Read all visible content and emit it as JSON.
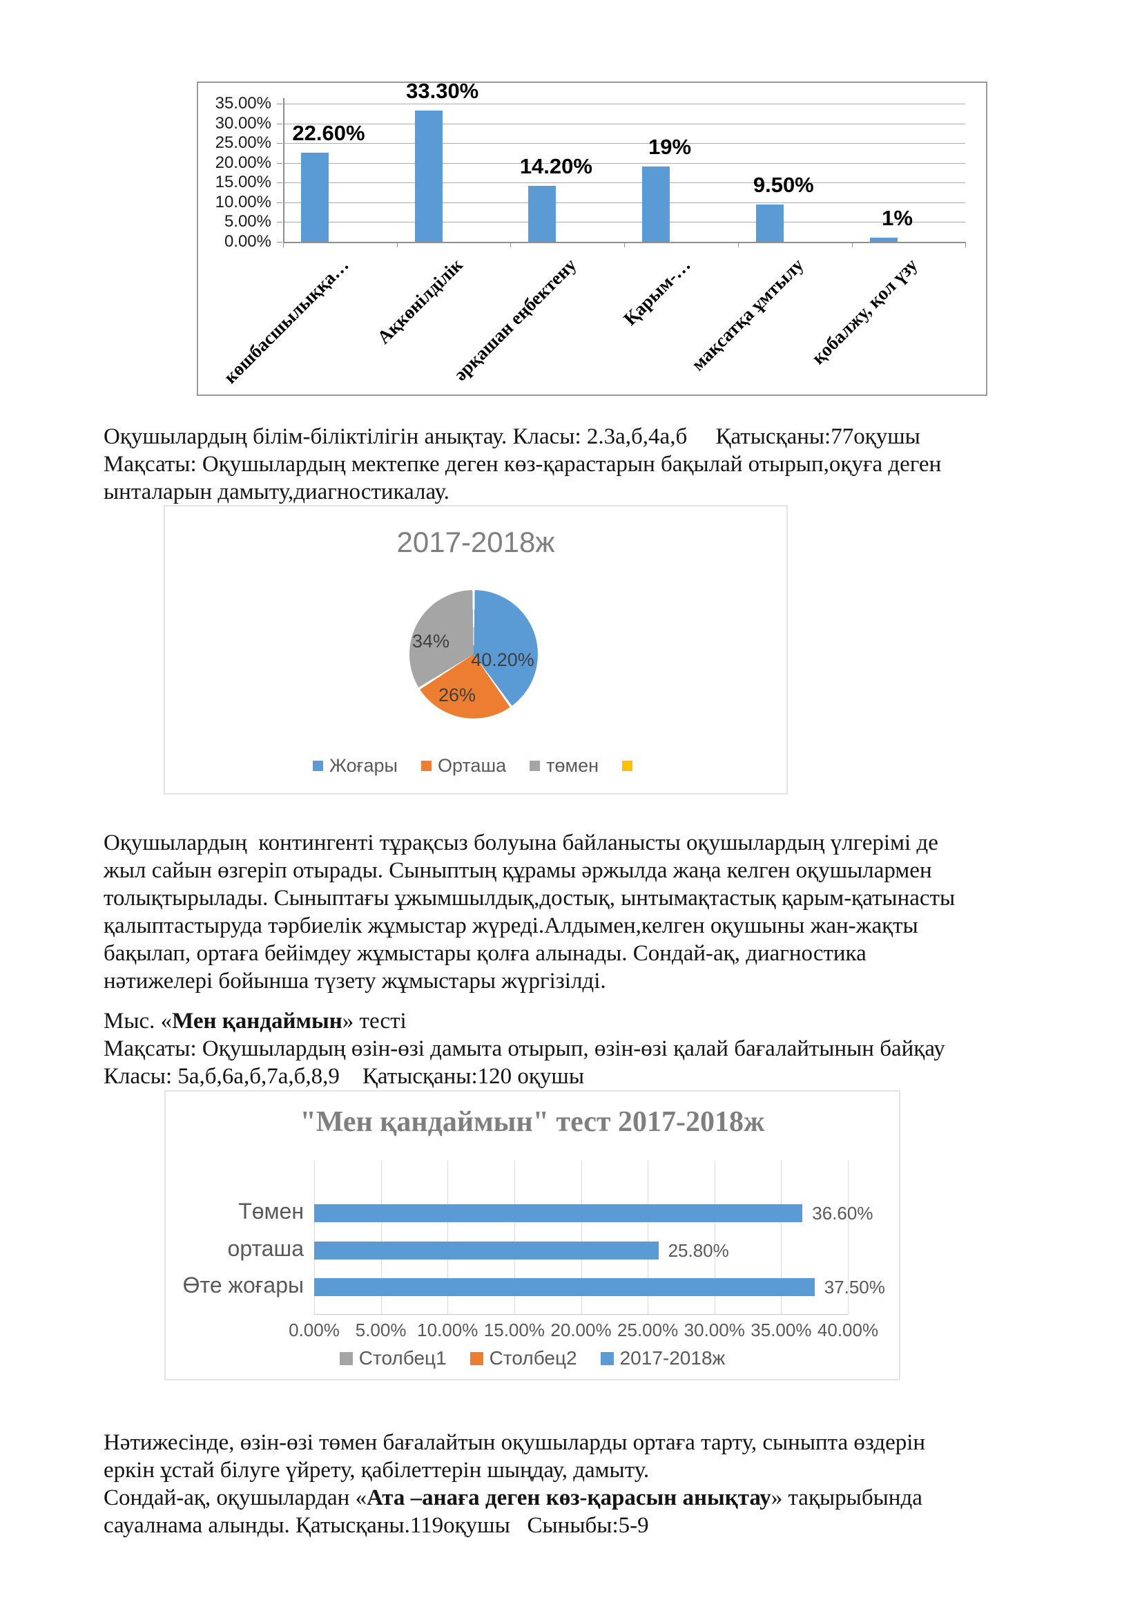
{
  "document": {
    "paragraphs": [
      {
        "name": "paragraph-1",
        "lines": [
          [
            {
              "t": "Оқушылардың білім-біліктілігін анықтау. Класы: 2.3а,б,4а,б     Қатысқаны:77оқушы"
            }
          ],
          [
            {
              "t": "Мақсаты: Оқушылардың мектепке деген көз-қарастарын бақылай отырып,оқуға деген"
            }
          ],
          [
            {
              "t": "ынталарын дамыту,диагностикалау."
            }
          ]
        ]
      },
      {
        "name": "paragraph-2",
        "lines": [
          [
            {
              "t": "Оқушылардың  контингенті тұрақсыз болуына байланысты оқушылардың үлгерімі де"
            }
          ],
          [
            {
              "t": "жыл сайын өзгеріп отырады. Сыныптың құрамы әржылда жаңа келген оқушылармен"
            }
          ],
          [
            {
              "t": "толықтырылады. Сыныптағы ұжымшылдық,достық, ынтымақтастық қарым-қатынасты"
            }
          ],
          [
            {
              "t": "қалыптастыруда тәрбиелік жұмыстар жүреді.Алдымен,келген оқушыны жан-жақты"
            }
          ],
          [
            {
              "t": "бақылап, ортаға бейімдеу жұмыстары қолға алынады. Сондай-ақ, диагностика"
            }
          ],
          [
            {
              "t": "нәтижелері бойынша түзету жұмыстары жүргізілді."
            }
          ]
        ]
      },
      {
        "name": "paragraph-3",
        "lines": [
          [
            {
              "t": "Мыс. «"
            },
            {
              "t": "Мен қандаймын",
              "b": true
            },
            {
              "t": "» тесті"
            }
          ],
          [
            {
              "t": "Мақсаты: Оқушылардың өзін-өзі дамыта отырып, өзін-өзі қалай бағалайтынын байқау"
            }
          ],
          [
            {
              "t": "Класы: 5а,б,6а,б,7а,б,8,9    Қатысқаны:120 оқушы"
            }
          ]
        ]
      },
      {
        "name": "paragraph-4",
        "lines": [
          [
            {
              "t": "Нәтижесінде, өзін-өзі төмен бағалайтын оқушыларды ортаға тарту, сыныпта өздерін"
            }
          ],
          [
            {
              "t": "еркін ұстай білуге үйрету, қабілеттерін шыңдау, дамыту."
            }
          ],
          [
            {
              "t": "Сондай-ақ, оқушылардан «"
            },
            {
              "t": "Ата –анаға деген көз-қарасын анықтау",
              "b": true
            },
            {
              "t": "» тақырыбында"
            }
          ],
          [
            {
              "t": "сауалнама алынды. Қатысқаны.119оқушы   Сыныбы:5-9"
            }
          ]
        ]
      }
    ]
  },
  "chart_data": [
    {
      "type": "bar",
      "title": "",
      "categories": [
        "көшбасшылыққа…",
        "Ақкөнілділік",
        "әрқашан еңбектену",
        "Қарым-…",
        "мақсатқа ұмтылу",
        "қобалжу, қол үзу"
      ],
      "values": [
        22.6,
        33.3,
        14.2,
        19,
        9.5,
        1
      ],
      "value_labels": [
        "22.60%",
        "33.30%",
        "14.20%",
        "19%",
        "9.50%",
        "1%"
      ],
      "y_ticks": [
        "35.00%",
        "30.00%",
        "25.00%",
        "20.00%",
        "15.00%",
        "10.00%",
        "5.00%",
        "0.00%"
      ],
      "ylim": [
        0,
        35
      ],
      "grid": "horizontal",
      "bar_color": "#5b9bd5"
    },
    {
      "type": "pie",
      "title": "2017-2018ж",
      "slices": [
        {
          "label": "Жоғары",
          "value": 40.2,
          "text": "40.20%",
          "color": "#5b9bd5"
        },
        {
          "label": "Орташа",
          "value": 26,
          "text": "26%",
          "color": "#ed7d31"
        },
        {
          "label": "төмен",
          "value": 34,
          "text": "34%",
          "color": "#a5a5a5"
        },
        {
          "label": "",
          "value": 0,
          "text": "",
          "color": "#ffc000"
        }
      ],
      "legend_position": "bottom"
    },
    {
      "type": "hbar",
      "title": "\"Мен қандаймын\" тест 2017-2018ж",
      "categories": [
        "Төмен",
        "орташа",
        "Өте жоғары"
      ],
      "values": [
        36.6,
        25.8,
        37.5
      ],
      "value_labels": [
        "36.60%",
        "25.80%",
        "37.50%"
      ],
      "x_ticks": [
        "0.00%",
        "5.00%",
        "10.00%",
        "15.00%",
        "20.00%",
        "25.00%",
        "30.00%",
        "35.00%",
        "40.00%"
      ],
      "xlim": [
        0,
        40
      ],
      "grid": "vertical",
      "bar_color": "#5b9bd5",
      "legend": [
        {
          "label": "Столбец1",
          "color": "#a5a5a5"
        },
        {
          "label": "Столбец2",
          "color": "#ed7d31"
        },
        {
          "label": "2017-2018ж",
          "color": "#5b9bd5"
        }
      ]
    }
  ],
  "colors": {
    "bar_blue": "#5b9bd5",
    "orange": "#ed7d31",
    "gray": "#a5a5a5",
    "yellow": "#ffc000",
    "chart_title_gray": "#7f7f7f",
    "axis_text_gray": "#595959"
  }
}
